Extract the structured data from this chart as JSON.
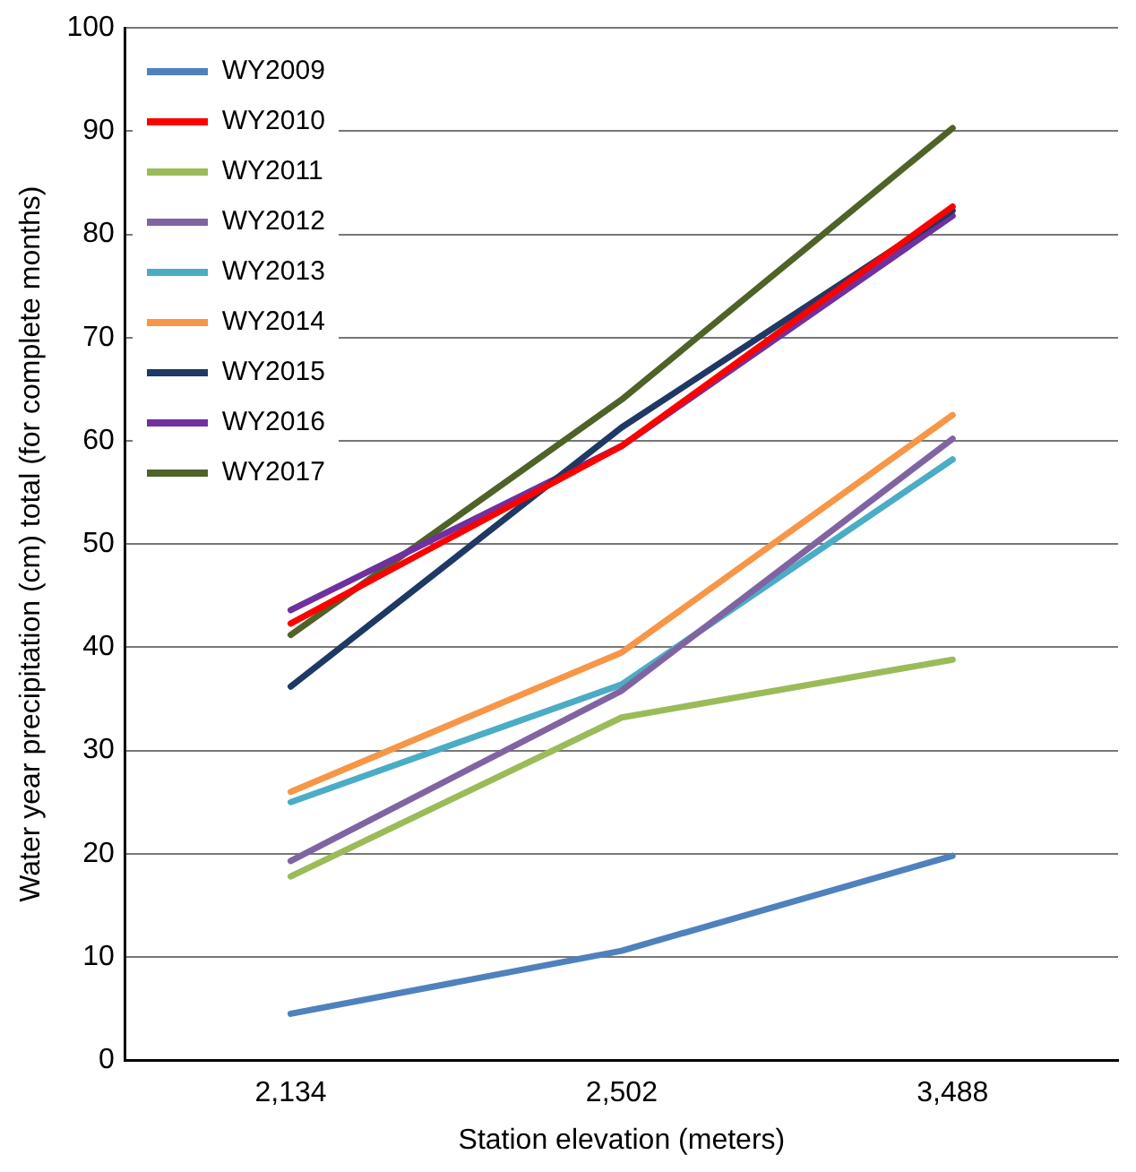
{
  "chart_data": {
    "type": "line",
    "xlabel": "Station elevation (meters)",
    "ylabel": "Water year precipitation (cm) total (for complete months)",
    "categories": [
      "2,134",
      "2,502",
      "3,488"
    ],
    "series": [
      {
        "name": "WY2009",
        "color": "#4f81bd",
        "values": [
          4.5,
          10.6,
          19.8
        ]
      },
      {
        "name": "WY2010",
        "color": "#ff0000",
        "values": [
          42.3,
          59.5,
          82.7
        ]
      },
      {
        "name": "WY2011",
        "color": "#9bbb59",
        "values": [
          17.8,
          33.2,
          38.8
        ]
      },
      {
        "name": "WY2012",
        "color": "#8064a2",
        "values": [
          19.3,
          35.8,
          60.2
        ]
      },
      {
        "name": "WY2013",
        "color": "#4bacc6",
        "values": [
          25,
          36.4,
          58.2
        ]
      },
      {
        "name": "WY2014",
        "color": "#f79646",
        "values": [
          26,
          39.5,
          62.5
        ]
      },
      {
        "name": "WY2015",
        "color": "#1f3864",
        "values": [
          36.2,
          61.3,
          82.3
        ]
      },
      {
        "name": "WY2016",
        "color": "#7030a0",
        "values": [
          43.6,
          59.5,
          81.8
        ]
      },
      {
        "name": "WY2017",
        "color": "#4f6228",
        "values": [
          41.2,
          64,
          90.3
        ]
      }
    ],
    "ylim": [
      0,
      100
    ],
    "yticks": [
      0,
      10,
      20,
      30,
      40,
      50,
      60,
      70,
      80,
      90,
      100
    ],
    "grid": "y",
    "legend": "top left",
    "marker": "none",
    "line_style": "solid"
  }
}
